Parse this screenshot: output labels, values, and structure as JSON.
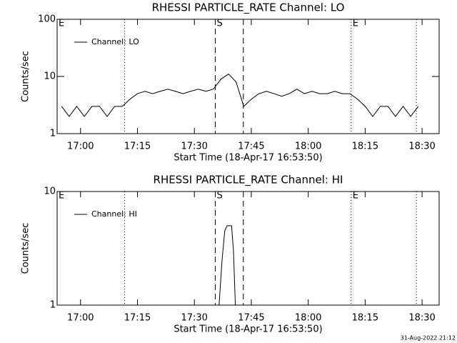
{
  "chart_data": [
    {
      "type": "line",
      "title": "RHESSI PARTICLE_RATE Channel: LO",
      "xlabel": "Start Time (18-Apr-17 16:53:50)",
      "ylabel": "Counts/sec",
      "x": [
        1015,
        1017,
        1019,
        1021,
        1023,
        1025,
        1027,
        1029,
        1031,
        1033,
        1035,
        1037,
        1039,
        1041,
        1043,
        1045,
        1047,
        1049,
        1051,
        1053,
        1055,
        1057,
        1059,
        1061,
        1063,
        1065,
        1067,
        1069,
        1071,
        1073,
        1075,
        1077,
        1079,
        1081,
        1083,
        1085,
        1087,
        1089,
        1091,
        1093,
        1095,
        1097,
        1099,
        1101,
        1103,
        1105,
        1107,
        1109
      ],
      "series": [
        {
          "name": "Channel: LO",
          "color": "#000000",
          "values": [
            3,
            2,
            3,
            2,
            3,
            3,
            2,
            3,
            3,
            4,
            5,
            5.5,
            5,
            5.5,
            6,
            5.5,
            5,
            5.5,
            6,
            5.5,
            6,
            9,
            11,
            8,
            3,
            4,
            5,
            5.5,
            5,
            4.5,
            5,
            6,
            5,
            5.5,
            5,
            5,
            5.5,
            5,
            5,
            4,
            3,
            2,
            3,
            3,
            2,
            3,
            2,
            3
          ]
        }
      ],
      "xlim": [
        1013.83,
        1114.5
      ],
      "xticks": [
        {
          "value": 1020,
          "label": "17:00"
        },
        {
          "value": 1035,
          "label": "17:15"
        },
        {
          "value": 1050,
          "label": "17:30"
        },
        {
          "value": 1065,
          "label": "17:45"
        },
        {
          "value": 1080,
          "label": "18:00"
        },
        {
          "value": 1095,
          "label": "18:15"
        },
        {
          "value": 1110,
          "label": "18:30"
        }
      ],
      "ylim": [
        1,
        100
      ],
      "yticks": [
        1,
        10,
        100
      ],
      "log_y": true,
      "legend": "upper left",
      "markers": [
        {
          "x": 1013.83,
          "style": "none",
          "label": "E"
        },
        {
          "x": 1031.6,
          "style": "dotted"
        },
        {
          "x": 1055.5,
          "style": "dashed",
          "label": "S"
        },
        {
          "x": 1062.9,
          "style": "dashed"
        },
        {
          "x": 1091.3,
          "style": "dotted",
          "label": "E"
        },
        {
          "x": 1108.5,
          "style": "dotted"
        }
      ]
    },
    {
      "type": "line",
      "title": "RHESSI PARTICLE_RATE Channel: HI",
      "xlabel": "Start Time (18-Apr-17 16:53:50)",
      "ylabel": "Counts/sec",
      "x": [
        1056.5,
        1057.3,
        1058,
        1058.6,
        1059.8,
        1060.3,
        1060.8
      ],
      "series": [
        {
          "name": "Channel: HI",
          "color": "#000000",
          "values": [
            1,
            2.5,
            4.5,
            5,
            5,
            3,
            1
          ]
        }
      ],
      "xlim": [
        1013.83,
        1114.5
      ],
      "xticks": [
        {
          "value": 1020,
          "label": "17:00"
        },
        {
          "value": 1035,
          "label": "17:15"
        },
        {
          "value": 1050,
          "label": "17:30"
        },
        {
          "value": 1065,
          "label": "17:45"
        },
        {
          "value": 1080,
          "label": "18:00"
        },
        {
          "value": 1095,
          "label": "18:15"
        },
        {
          "value": 1110,
          "label": "18:30"
        }
      ],
      "ylim": [
        1,
        10
      ],
      "yticks": [
        1,
        10
      ],
      "log_y": true,
      "legend": "upper left",
      "markers": [
        {
          "x": 1013.83,
          "style": "none",
          "label": "E"
        },
        {
          "x": 1031.6,
          "style": "dotted"
        },
        {
          "x": 1055.5,
          "style": "dashed",
          "label": "S"
        },
        {
          "x": 1062.9,
          "style": "dashed"
        },
        {
          "x": 1091.3,
          "style": "dotted",
          "label": "E"
        },
        {
          "x": 1108.5,
          "style": "dotted"
        }
      ]
    }
  ],
  "footer": "31-Aug-2022 21:12"
}
